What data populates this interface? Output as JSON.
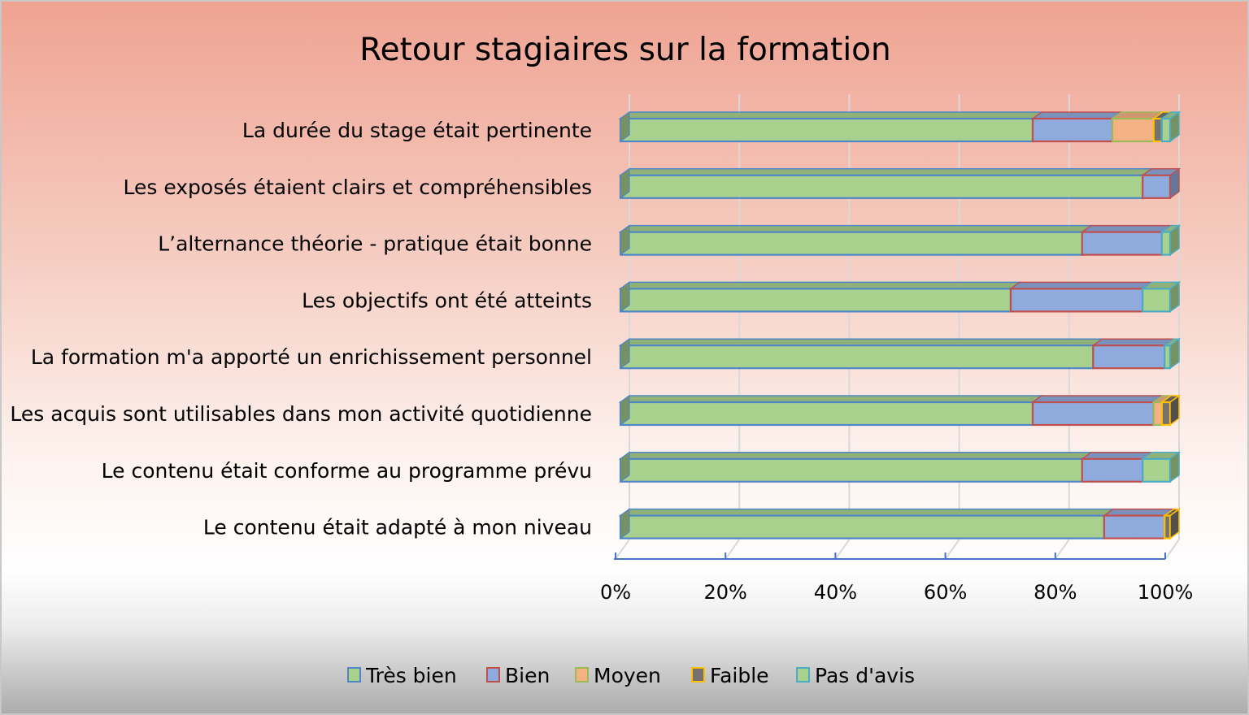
{
  "chart_data": {
    "type": "bar",
    "orientation": "horizontal",
    "stacked": "percent",
    "three_d": true,
    "title": "Retour stagiaires sur la formation",
    "xlabel": "",
    "ylabel": "",
    "xlim": [
      0,
      100
    ],
    "x_ticks": [
      "0%",
      "20%",
      "40%",
      "60%",
      "80%",
      "100%"
    ],
    "grid": true,
    "legend_position": "bottom",
    "categories": [
      "La durée du stage était pertinente",
      "Les exposés étaient clairs et compréhensibles",
      "L’alternance théorie - pratique était bonne",
      "Les objectifs ont été atteints",
      "La formation m'a apporté un enrichissement personnel",
      "Les acquis sont utilisables dans mon activité quotidienne",
      "Le contenu était conforme au programme prévu",
      "Le contenu était adapté à mon niveau"
    ],
    "series": [
      {
        "name": "Très bien",
        "fill": "#a9d18e",
        "edge": "#4f86c6",
        "values": [
          75,
          95,
          84,
          71,
          86,
          75,
          84,
          88
        ]
      },
      {
        "name": "Bien",
        "fill": "#8faadc",
        "edge": "#c0504d",
        "values": [
          14.5,
          5,
          14.5,
          24,
          13,
          22,
          11,
          11
        ]
      },
      {
        "name": "Moyen",
        "fill": "#f4b183",
        "edge": "#9bbb59",
        "values": [
          7.5,
          0,
          0,
          0,
          0,
          1.5,
          0,
          0
        ]
      },
      {
        "name": "Faible",
        "fill": "#767171",
        "edge": "#ffc000",
        "values": [
          1.5,
          0,
          0,
          0,
          0,
          1.5,
          0,
          1
        ]
      },
      {
        "name": "Pas d'avis",
        "fill": "#a9d18e",
        "edge": "#4bacc6",
        "values": [
          1.5,
          0,
          1.5,
          5,
          1,
          0,
          5,
          0
        ]
      }
    ]
  }
}
